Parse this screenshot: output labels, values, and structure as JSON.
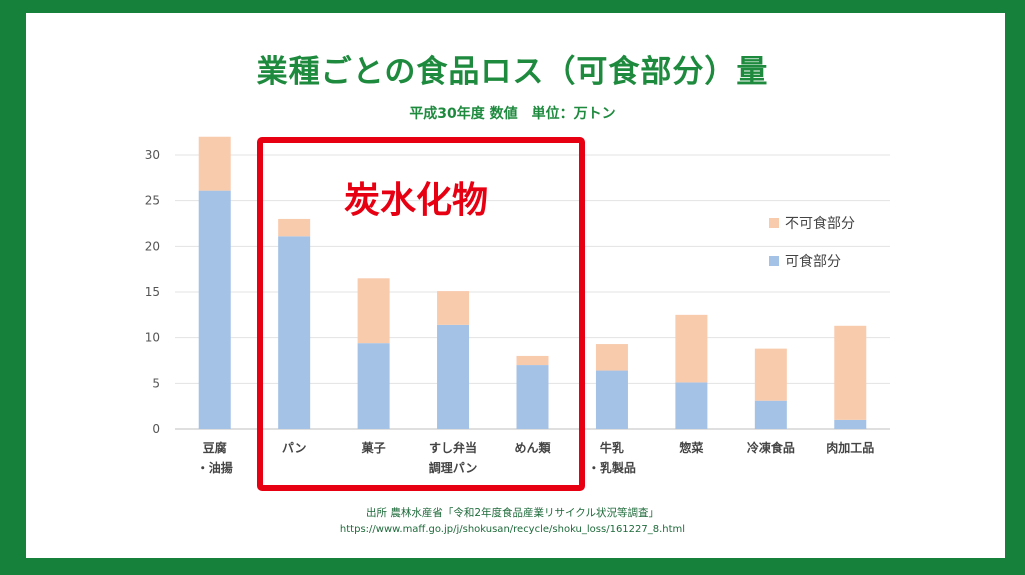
{
  "title": "業種ごとの食品ロス（可食部分）量",
  "subtitle": "平成30年度 数値　単位：万トン",
  "source": "出所 農林水産省「令和2年度食品産業リサイクル状況等調査」",
  "url": "https://www.maff.go.jp/j/shokusan/recycle/shoku_loss/161227_8.html",
  "highlight": {
    "label": "炭水化物",
    "color": "#e60012"
  },
  "chart_data": {
    "type": "bar",
    "stacked": true,
    "categories": [
      [
        "豆腐",
        "・油揚"
      ],
      [
        "パン"
      ],
      [
        "菓子"
      ],
      [
        "すし弁当",
        "調理パン"
      ],
      [
        "めん類"
      ],
      [
        "牛乳",
        "・乳製品"
      ],
      [
        "惣菜"
      ],
      [
        "冷凍食品"
      ],
      [
        "肉加工品"
      ]
    ],
    "series": [
      {
        "name": "可食部分",
        "color": "#a4c2e6",
        "values": [
          26.1,
          21.1,
          9.4,
          11.4,
          7.0,
          6.4,
          5.1,
          3.1,
          1.0
        ]
      },
      {
        "name": "不可食部分",
        "color": "#f8cbad",
        "values": [
          5.9,
          1.9,
          7.1,
          3.7,
          1.0,
          2.9,
          7.4,
          5.7,
          10.3
        ]
      }
    ],
    "legend": [
      "不可食部分",
      "可食部分"
    ],
    "ylim": [
      0,
      30
    ],
    "yticks": [
      0,
      5,
      10,
      15,
      20,
      25,
      30
    ],
    "grid": true,
    "legend_position": "right"
  }
}
